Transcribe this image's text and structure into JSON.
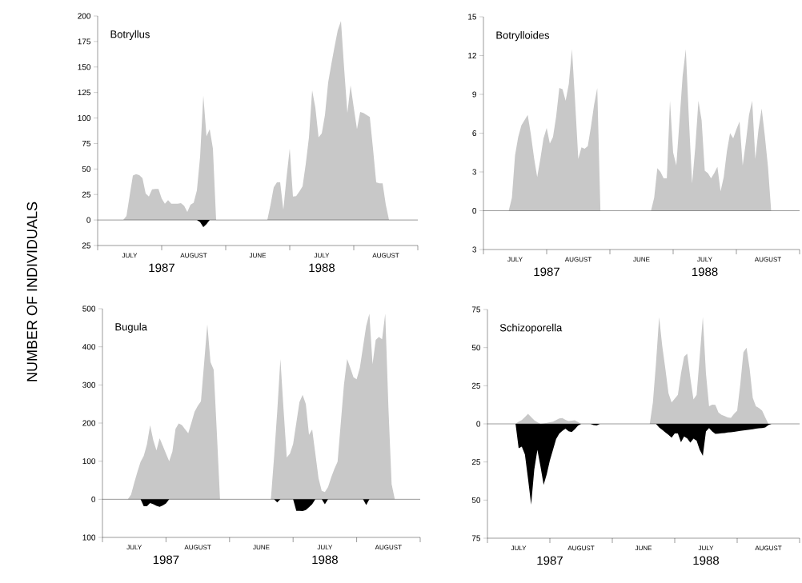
{
  "chart_data": [
    {
      "type": "area",
      "title": "Botryllus",
      "ylabel": "NUMBER OF INDIVIDUALS",
      "ylim": [
        -25,
        200
      ],
      "categories": [
        null,
        null,
        null,
        null,
        null,
        null,
        null,
        null,
        null,
        null,
        "JULY",
        null,
        null,
        null,
        null,
        null,
        null,
        null,
        null,
        null,
        null,
        null,
        null,
        null,
        null,
        null,
        null,
        null,
        null,
        null,
        "AUGUST",
        null,
        null,
        null,
        null,
        null,
        null,
        null,
        null,
        null,
        null,
        null,
        null,
        null,
        null,
        null,
        null,
        null,
        null,
        null,
        "JUNE",
        null,
        null,
        null,
        null,
        null,
        null,
        null,
        null,
        null,
        null,
        null,
        null,
        null,
        null,
        null,
        null,
        null,
        null,
        null,
        "JULY",
        null,
        null,
        null,
        null,
        null,
        null,
        null,
        null,
        null,
        null,
        null,
        null,
        null,
        null,
        null,
        null,
        null,
        null,
        null,
        "AUGUST",
        null,
        null,
        null,
        null,
        null,
        null,
        null,
        null,
        null,
        null
      ],
      "yticks": [
        {
          "value": -25,
          "label": "25"
        },
        0,
        25,
        50,
        75,
        100,
        125,
        150,
        175,
        200
      ],
      "ref_lines": [
        {
          "axis": "y",
          "value": 0
        }
      ],
      "annotations": [
        "1987",
        "1988"
      ],
      "series": [
        {
          "color": "#c8c8c8",
          "values": [
            0,
            0,
            0,
            0,
            0,
            0,
            0,
            0,
            0,
            4,
            24,
            43.5,
            45,
            44,
            41,
            26,
            23,
            30,
            30.5,
            30.5,
            21,
            16,
            19.5,
            16,
            16,
            16,
            16.5,
            14,
            8,
            15,
            17,
            29,
            62,
            122,
            82,
            89,
            70,
            0,
            0,
            0,
            0,
            0,
            0,
            0,
            0,
            0,
            0,
            0,
            0,
            0,
            0,
            0,
            0,
            0,
            15,
            32,
            37,
            37,
            10,
            42,
            70,
            23,
            23.5,
            28,
            33,
            55,
            81,
            127,
            110,
            81,
            85,
            103,
            135,
            153,
            170,
            186,
            195,
            148,
            105,
            132,
            110,
            89,
            106,
            105,
            103,
            101,
            70,
            37,
            36,
            36,
            15,
            0,
            0,
            0,
            0,
            0,
            0,
            0,
            0,
            0,
            0
          ]
        },
        {
          "color": "#000000",
          "values": [
            0,
            0,
            0,
            0,
            0,
            0,
            0,
            0,
            0,
            0,
            0,
            0,
            0,
            0,
            0,
            0,
            0,
            0,
            0,
            0,
            0,
            0,
            0,
            0,
            0,
            0,
            0,
            0,
            0,
            0,
            0,
            0,
            -2,
            -7,
            -4,
            0,
            0,
            0,
            0,
            0,
            0,
            0,
            0,
            0,
            0,
            0,
            0,
            0,
            0,
            0,
            0,
            0,
            0,
            0,
            0,
            0,
            0,
            0,
            0,
            0,
            0,
            0,
            0,
            0,
            0,
            0,
            0,
            0,
            0,
            0,
            0,
            0,
            0,
            0,
            0,
            0,
            0,
            0,
            0,
            0,
            0,
            0,
            0,
            0,
            0,
            0,
            0,
            0,
            0,
            0,
            0,
            0,
            0,
            0,
            0,
            0,
            0,
            0,
            0,
            0,
            0
          ]
        }
      ]
    },
    {
      "type": "area",
      "title": "Botrylloides",
      "ylim": [
        -3,
        15
      ],
      "categories": [
        null,
        null,
        null,
        null,
        null,
        null,
        null,
        null,
        null,
        null,
        "JULY",
        null,
        null,
        null,
        null,
        null,
        null,
        null,
        null,
        null,
        null,
        null,
        null,
        null,
        null,
        null,
        null,
        null,
        null,
        null,
        "AUGUST",
        null,
        null,
        null,
        null,
        null,
        null,
        null,
        null,
        null,
        null,
        null,
        null,
        null,
        null,
        null,
        null,
        null,
        null,
        null,
        "JUNE",
        null,
        null,
        null,
        null,
        null,
        null,
        null,
        null,
        null,
        null,
        null,
        null,
        null,
        null,
        null,
        null,
        null,
        null,
        null,
        "JULY",
        null,
        null,
        null,
        null,
        null,
        null,
        null,
        null,
        null,
        null,
        null,
        null,
        null,
        null,
        null,
        null,
        null,
        null,
        null,
        "AUGUST",
        null,
        null,
        null,
        null,
        null,
        null,
        null,
        null,
        null,
        null
      ],
      "yticks": [
        {
          "value": -3,
          "label": "3"
        },
        0,
        3,
        6,
        9,
        12,
        15
      ],
      "ref_lines": [
        {
          "axis": "y",
          "value": 0
        }
      ],
      "annotations": [
        "1987",
        "1988"
      ],
      "series": [
        {
          "color": "#c8c8c8",
          "values": [
            0,
            0,
            0,
            0,
            0,
            0,
            0,
            0,
            0,
            1.0,
            4.3,
            5.7,
            6.6,
            7.0,
            7.4,
            5.9,
            4.1,
            2.6,
            4.0,
            5.6,
            6.4,
            5.2,
            5.7,
            7.3,
            9.5,
            9.4,
            8.5,
            9.8,
            12.5,
            8.4,
            4.0,
            4.9,
            4.8,
            5.0,
            6.5,
            8.2,
            9.5,
            0,
            0,
            0,
            0,
            0,
            0,
            0,
            0,
            0,
            0,
            0,
            0,
            0,
            0,
            0,
            0,
            0,
            1.0,
            3.3,
            3.0,
            2.5,
            2.5,
            8.5,
            4.5,
            3.5,
            6.9,
            10.4,
            12.5,
            7.0,
            2.1,
            4.9,
            8.5,
            7.0,
            3.1,
            2.9,
            2.5,
            2.9,
            3.4,
            1.5,
            2.6,
            4.6,
            6.0,
            5.6,
            6.3,
            6.9,
            3.5,
            5.3,
            7.4,
            8.5,
            4.0,
            6.3,
            7.9,
            5.8,
            3.4,
            0,
            0,
            0,
            0,
            0,
            0,
            0,
            0,
            0,
            0
          ]
        }
      ]
    },
    {
      "type": "area",
      "title": "Bugula",
      "ylim": [
        -100,
        500
      ],
      "categories": [
        null,
        null,
        null,
        null,
        null,
        null,
        null,
        null,
        null,
        null,
        "JULY",
        null,
        null,
        null,
        null,
        null,
        null,
        null,
        null,
        null,
        null,
        null,
        null,
        null,
        null,
        null,
        null,
        null,
        null,
        null,
        "AUGUST",
        null,
        null,
        null,
        null,
        null,
        null,
        null,
        null,
        null,
        null,
        null,
        null,
        null,
        null,
        null,
        null,
        null,
        null,
        null,
        "JUNE",
        null,
        null,
        null,
        null,
        null,
        null,
        null,
        null,
        null,
        null,
        null,
        null,
        null,
        null,
        null,
        null,
        null,
        null,
        null,
        "JULY",
        null,
        null,
        null,
        null,
        null,
        null,
        null,
        null,
        null,
        null,
        null,
        null,
        null,
        null,
        null,
        null,
        null,
        null,
        null,
        "AUGUST",
        null,
        null,
        null,
        null,
        null,
        null,
        null,
        null,
        null,
        null
      ],
      "yticks": [
        {
          "value": -100,
          "label": "100"
        },
        0,
        100,
        200,
        300,
        400,
        500
      ],
      "ref_lines": [
        {
          "axis": "y",
          "value": 0
        }
      ],
      "annotations": [
        "1987",
        "1988"
      ],
      "series": [
        {
          "color": "#c8c8c8",
          "values": [
            0,
            0,
            0,
            0,
            0,
            0,
            0,
            0,
            0,
            12,
            43,
            72,
            98,
            114,
            144,
            194,
            155,
            128,
            160,
            140,
            120,
            100,
            125,
            185,
            199,
            195,
            184,
            173,
            201,
            230,
            245,
            257,
            358,
            459,
            360,
            340,
            175,
            0,
            0,
            0,
            0,
            0,
            0,
            0,
            0,
            0,
            0,
            0,
            0,
            0,
            0,
            0,
            0,
            0,
            110,
            230,
            368,
            235,
            110,
            120,
            145,
            200,
            255,
            274,
            250,
            169,
            183,
            120,
            55,
            22,
            19,
            32,
            58,
            80,
            99,
            200,
            300,
            368,
            345,
            320,
            315,
            345,
            400,
            455,
            487,
            354,
            418,
            426,
            420,
            487,
            240,
            40,
            0,
            0,
            0,
            0,
            0,
            0,
            0,
            0,
            0
          ]
        },
        {
          "color": "#000000",
          "values": [
            0,
            0,
            0,
            0,
            0,
            0,
            0,
            0,
            0,
            0,
            0,
            0,
            0,
            -18,
            -18,
            -10,
            -13,
            -17,
            -20,
            -16,
            -11,
            0,
            0,
            0,
            0,
            0,
            0,
            0,
            0,
            0,
            0,
            0,
            0,
            0,
            0,
            0,
            0,
            0,
            0,
            0,
            0,
            0,
            0,
            0,
            0,
            0,
            0,
            0,
            0,
            0,
            0,
            0,
            0,
            0,
            0,
            -8,
            0,
            0,
            0,
            0,
            0,
            -30,
            -30,
            -31,
            -28,
            -21,
            -13,
            0,
            0,
            0,
            -13,
            0,
            0,
            0,
            0,
            0,
            0,
            0,
            0,
            0,
            0,
            0,
            0,
            -15,
            0,
            0,
            0,
            0,
            0,
            0,
            0,
            0,
            0,
            0,
            0,
            0,
            0,
            0,
            0,
            0,
            0
          ]
        }
      ]
    },
    {
      "type": "area",
      "title": "Schizoporella",
      "ylim": [
        -75,
        75
      ],
      "categories": [
        null,
        null,
        null,
        null,
        null,
        null,
        null,
        null,
        null,
        null,
        "JULY",
        null,
        null,
        null,
        null,
        null,
        null,
        null,
        null,
        null,
        null,
        null,
        null,
        null,
        null,
        null,
        null,
        null,
        null,
        null,
        "AUGUST",
        null,
        null,
        null,
        null,
        null,
        null,
        null,
        null,
        null,
        null,
        null,
        null,
        null,
        null,
        null,
        null,
        null,
        null,
        null,
        "JUNE",
        null,
        null,
        null,
        null,
        null,
        null,
        null,
        null,
        null,
        null,
        null,
        null,
        null,
        null,
        null,
        null,
        null,
        null,
        null,
        "JULY",
        null,
        null,
        null,
        null,
        null,
        null,
        null,
        null,
        null,
        null,
        null,
        null,
        null,
        null,
        null,
        null,
        null,
        null,
        null,
        "AUGUST",
        null,
        null,
        null,
        null,
        null,
        null,
        null,
        null,
        null,
        null
      ],
      "yticks": [
        {
          "value": -75,
          "label": "75"
        },
        {
          "value": -50,
          "label": "50"
        },
        {
          "value": -25,
          "label": "25"
        },
        0,
        25,
        50,
        75
      ],
      "ref_lines": [
        {
          "axis": "y",
          "value": 0
        }
      ],
      "annotations": [
        "1987",
        "1988"
      ],
      "series": [
        {
          "color": "#c8c8c8",
          "values": [
            0,
            0,
            0,
            0,
            0,
            0,
            0,
            0,
            0,
            0,
            1.5,
            2.5,
            4.5,
            6.5,
            4.5,
            2.4,
            1,
            0,
            0.3,
            0.6,
            1.0,
            1.4,
            2.5,
            3.6,
            3.8,
            2.6,
            1.8,
            2.1,
            2.4,
            1.2,
            0,
            0,
            0,
            0,
            0,
            0,
            0,
            0,
            0,
            0,
            0,
            0,
            0,
            0,
            0,
            0,
            0,
            0,
            0,
            0,
            0,
            0,
            0,
            14,
            40,
            70,
            51,
            36,
            20,
            14,
            16.5,
            19,
            33,
            44,
            46,
            30,
            16,
            19,
            44,
            70,
            33,
            11.5,
            12.6,
            12.5,
            7.5,
            5.9,
            5.1,
            4.2,
            4,
            6.5,
            8.7,
            26,
            47,
            50,
            36,
            17,
            11.6,
            10.3,
            8.7,
            4.2,
            0,
            0,
            0,
            0,
            0,
            0,
            0,
            0,
            0,
            0,
            0
          ]
        },
        {
          "color": "#000000",
          "values": [
            0,
            0,
            0,
            0,
            0,
            0,
            0,
            0,
            0,
            0,
            -16,
            -15,
            -20,
            -36,
            -53,
            -30,
            -17,
            -28,
            -40,
            -33,
            -24,
            -17,
            -10,
            -6.4,
            -4.6,
            -3.2,
            -4.8,
            -5.4,
            -3.5,
            -1.2,
            0,
            0,
            0,
            0,
            -0.8,
            -1.0,
            0,
            0,
            0,
            0,
            0,
            0,
            0,
            0,
            0,
            0,
            0,
            0,
            0,
            0,
            0,
            0,
            0,
            0,
            0,
            -2.3,
            -3.9,
            -5.6,
            -7.2,
            -9.0,
            -6.3,
            -6.3,
            -12,
            -8.2,
            -9.6,
            -12.3,
            -9.7,
            -11,
            -17,
            -21,
            -5,
            -2.7,
            -5,
            -6.6,
            -6.4,
            -6.2,
            -6,
            -5.7,
            -5.5,
            -5.2,
            -4.9,
            -4.6,
            -4.3,
            -4.1,
            -3.8,
            -3.6,
            -3.2,
            -2.9,
            -2.7,
            -2.4,
            -0.8,
            0,
            0,
            0,
            0,
            0,
            0,
            0,
            0,
            0,
            0
          ]
        }
      ]
    }
  ]
}
